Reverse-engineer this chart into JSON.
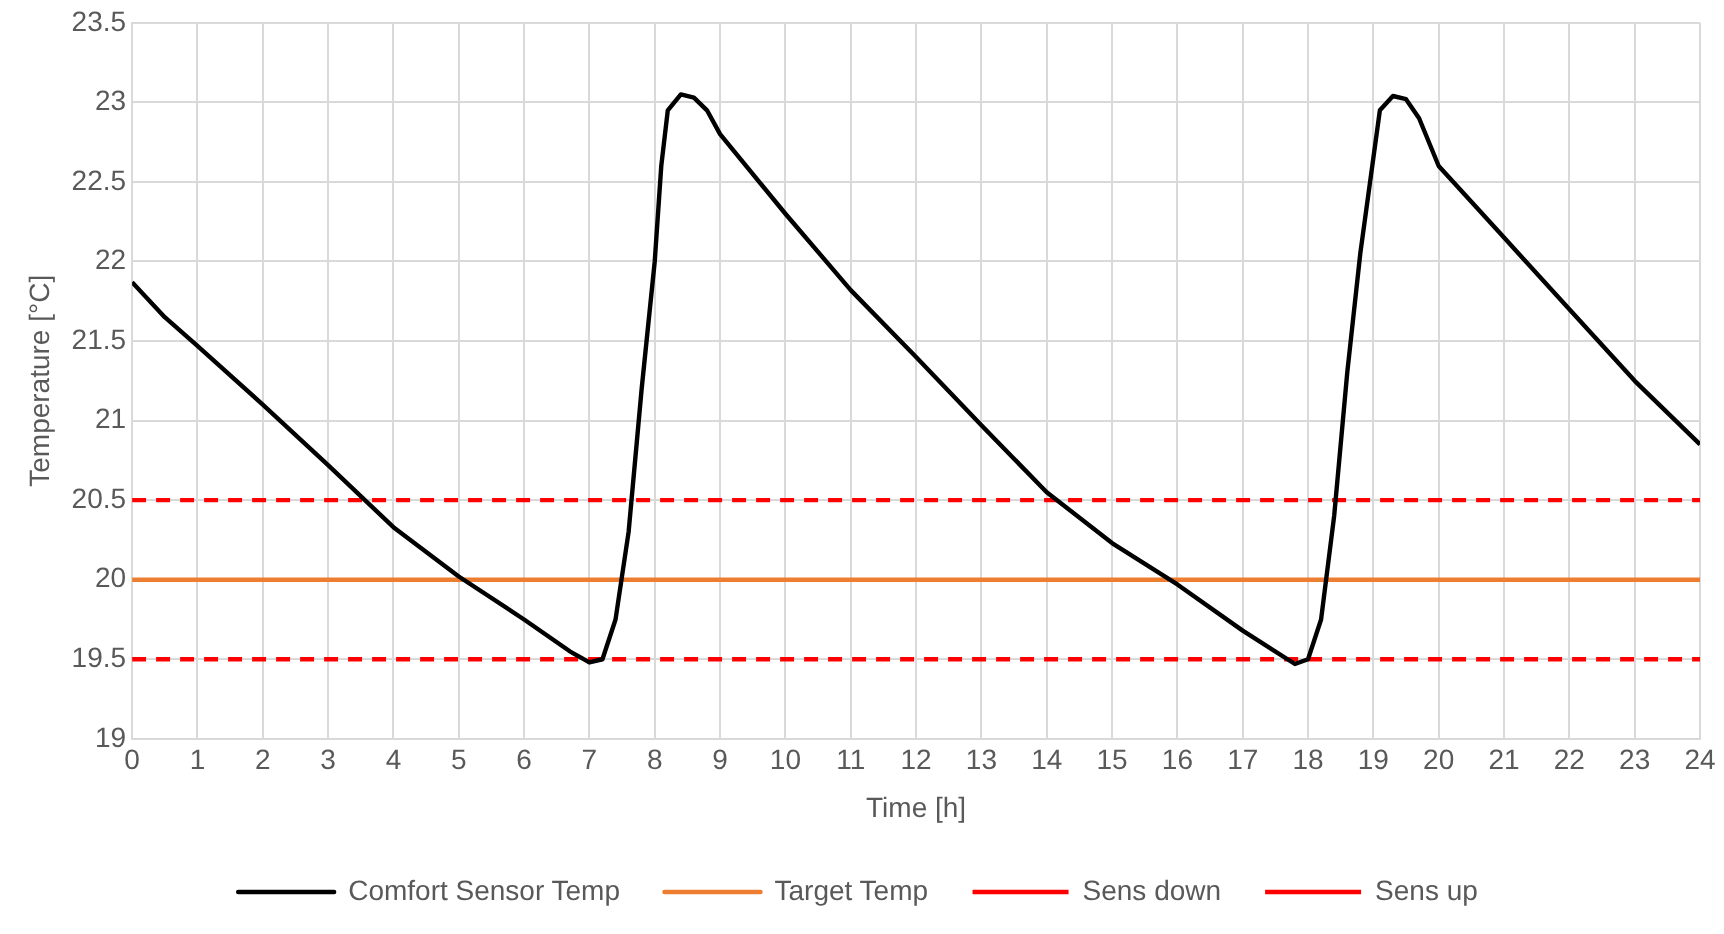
{
  "chart_data": {
    "type": "line",
    "xlabel": "Time [h]",
    "ylabel": "Temperature [°C]",
    "xlim": [
      0,
      24
    ],
    "xticks": [
      0,
      1,
      2,
      3,
      4,
      5,
      6,
      7,
      8,
      9,
      10,
      11,
      12,
      13,
      14,
      15,
      16,
      17,
      18,
      19,
      20,
      21,
      22,
      23,
      24
    ],
    "ylim": [
      19,
      23.5
    ],
    "yticks": [
      19,
      19.5,
      20,
      20.5,
      21,
      21.5,
      22,
      22.5,
      23,
      23.5
    ],
    "grid": true,
    "legend": "bottom",
    "marker": "none",
    "series": [
      {
        "name": "Comfort Sensor Temp",
        "color": "#000000",
        "line_style": "solid",
        "x": [
          0,
          0.5,
          1,
          2,
          3,
          4,
          5,
          6,
          6.7,
          7,
          7.2,
          7.4,
          7.6,
          7.8,
          8,
          8.1,
          8.2,
          8.4,
          8.6,
          8.8,
          9,
          10,
          11,
          12,
          13,
          14,
          15,
          16,
          17,
          17.8,
          18,
          18.2,
          18.4,
          18.6,
          18.8,
          19,
          19.1,
          19.3,
          19.5,
          19.7,
          20,
          21,
          22,
          23,
          24
        ],
        "values": [
          21.87,
          21.65,
          21.47,
          21.1,
          20.72,
          20.33,
          20.02,
          19.75,
          19.55,
          19.48,
          19.5,
          19.75,
          20.3,
          21.2,
          22,
          22.6,
          22.95,
          23.05,
          23.03,
          22.95,
          22.8,
          22.3,
          21.82,
          21.4,
          20.97,
          20.55,
          20.23,
          19.97,
          19.68,
          19.47,
          19.5,
          19.75,
          20.4,
          21.3,
          22.05,
          22.65,
          22.95,
          23.04,
          23.02,
          22.9,
          22.6,
          22.15,
          21.7,
          21.25,
          20.85
        ]
      },
      {
        "name": "Target Temp",
        "color": "#ed7d31",
        "line_style": "solid",
        "x": [
          0,
          24
        ],
        "values": [
          20,
          20
        ]
      },
      {
        "name": "Sens down",
        "color": "#ff0000",
        "line_style": "dashed",
        "x": [
          0,
          24
        ],
        "values": [
          19.5,
          19.5
        ]
      },
      {
        "name": "Sens up",
        "color": "#ff0000",
        "line_style": "dashed",
        "x": [
          0,
          24
        ],
        "values": [
          20.5,
          20.5
        ]
      }
    ]
  }
}
